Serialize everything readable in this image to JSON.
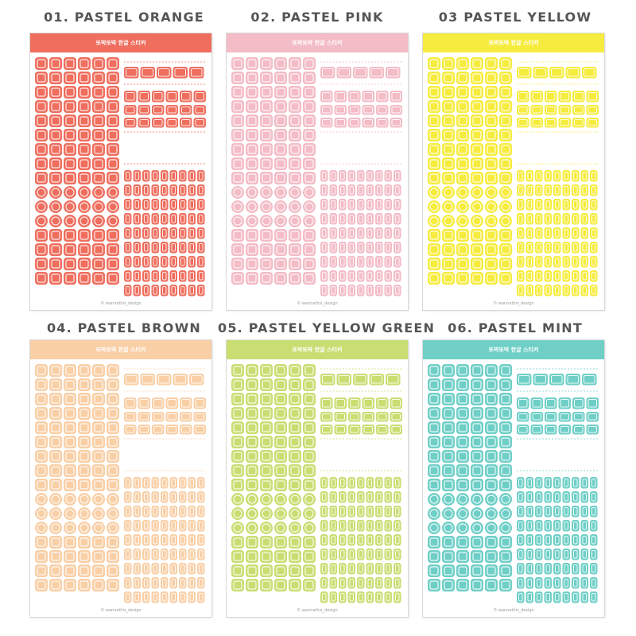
{
  "variants": [
    {
      "title": "01. PASTEL ORANGE",
      "header_text": "또박또박 한글 스티커",
      "footer_text": "© wannathis_design",
      "color": "#ef6e5e"
    },
    {
      "title": "02. PASTEL PINK",
      "header_text": "또박또박 한글 스티커",
      "footer_text": "© wannathis_design",
      "color": "#f3bcc6"
    },
    {
      "title": "03 PASTEL YELLOW",
      "header_text": "또박또박 한글 스티커",
      "footer_text": "© wannathis_design",
      "color": "#f6ec3f"
    },
    {
      "title": "04. PASTEL BROWN",
      "header_text": "또박또박 한글 스티커",
      "footer_text": "© wannathis_design",
      "color": "#f9cfa6"
    },
    {
      "title": "05. PASTEL YELLOW GREEN",
      "header_text": "또박또박 한글 스티커",
      "footer_text": "© wannathis_design",
      "color": "#c8de72"
    },
    {
      "title": "06. PASTEL MINT",
      "header_text": "또박또박 한글 스티커",
      "footer_text": "© wannathis_design",
      "color": "#6fcfc7"
    }
  ]
}
